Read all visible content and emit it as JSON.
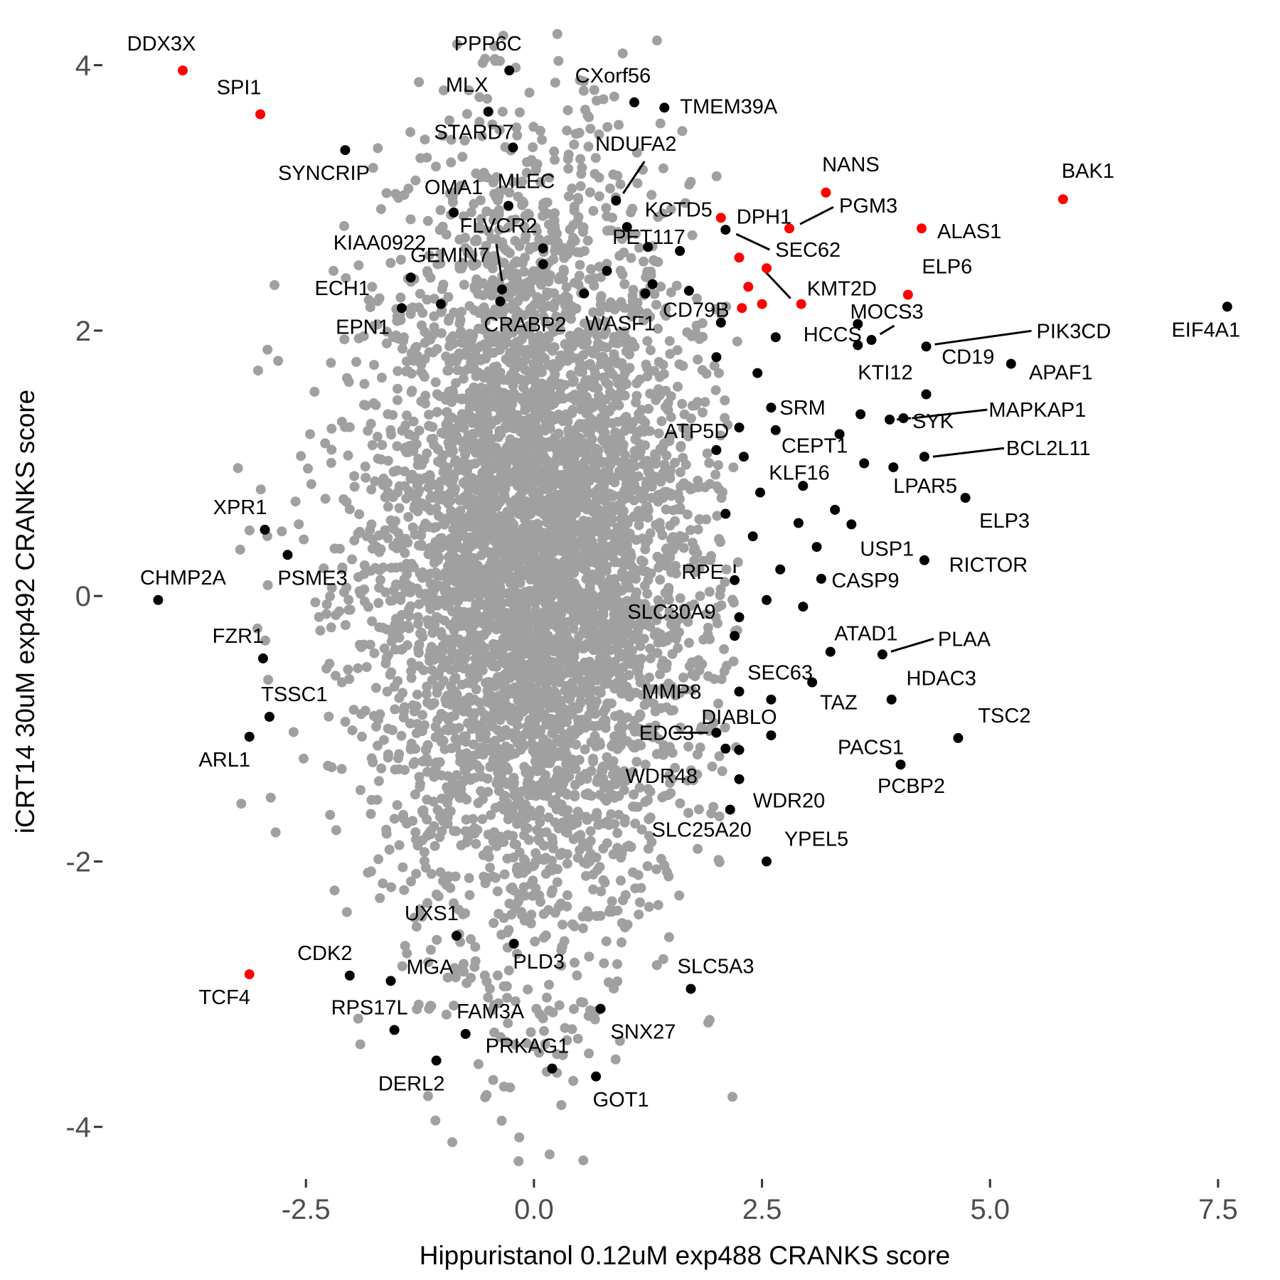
{
  "chart_data": {
    "type": "scatter",
    "title": "",
    "xlabel": "Hippuristanol 0.12uM exp488 CRANKS score",
    "ylabel": "iCRT14 30uM exp492 CRANKS score",
    "xlim": [
      -4.7,
      7.75
    ],
    "ylim": [
      -4.35,
      4.25
    ],
    "x_ticks": [
      -2.5,
      0.0,
      2.5,
      5.0,
      7.5
    ],
    "x_tick_labels": [
      "-2.5",
      "0.0",
      "2.5",
      "5.0",
      "7.5"
    ],
    "y_ticks": [
      4,
      2,
      0,
      -2,
      -4
    ],
    "y_tick_labels": [
      "4",
      "2",
      "0",
      "-2",
      "-4"
    ],
    "grid": false,
    "legend": "none",
    "colors": {
      "background": "#ffffff",
      "all": "#a0a0a0",
      "hit": "#000000",
      "highlight": "#ff0000"
    },
    "background_cloud": {
      "color": "#a0a0a0",
      "note_free": true,
      "core": {
        "cx": 0.0,
        "cy": 0.3,
        "sx": 0.85,
        "sy": 1.55
      },
      "halo": {
        "cx": 0.0,
        "cy": 0.2,
        "sx": 1.35,
        "sy": 1.0
      }
    },
    "labeled_points": [
      {
        "gene": "DDX3X",
        "x": -3.85,
        "y": 3.96,
        "color": "red"
      },
      {
        "gene": "SPI1",
        "x": -3.0,
        "y": 3.63,
        "color": "red"
      },
      {
        "gene": "PPP6C",
        "x": -0.27,
        "y": 3.96,
        "color": "black"
      },
      {
        "gene": "MLX",
        "x": -0.5,
        "y": 3.65,
        "color": "black"
      },
      {
        "gene": "CXorf56",
        "x": 1.1,
        "y": 3.72,
        "color": "black"
      },
      {
        "gene": "TMEM39A",
        "x": 1.43,
        "y": 3.68,
        "color": "black"
      },
      {
        "gene": "STARD7",
        "x": -0.23,
        "y": 3.38,
        "color": "black"
      },
      {
        "gene": "SYNCRIP",
        "x": -2.07,
        "y": 3.36,
        "color": "black"
      },
      {
        "gene": "NDUFA2",
        "x": 0.9,
        "y": 2.98,
        "color": "black"
      },
      {
        "gene": "KCTD5",
        "x": 1.02,
        "y": 2.78,
        "color": "black"
      },
      {
        "gene": "OMA1",
        "x": -0.88,
        "y": 2.89,
        "color": "black"
      },
      {
        "gene": "MLEC",
        "x": -0.28,
        "y": 2.94,
        "color": "black"
      },
      {
        "gene": "NANS",
        "x": 3.2,
        "y": 3.04,
        "color": "red"
      },
      {
        "gene": "BAK1",
        "x": 5.8,
        "y": 2.99,
        "color": "red"
      },
      {
        "gene": "DPH1",
        "x": 2.05,
        "y": 2.85,
        "color": "red"
      },
      {
        "gene": "PGM3",
        "x": 2.8,
        "y": 2.77,
        "color": "red"
      },
      {
        "gene": "ALAS1",
        "x": 4.25,
        "y": 2.77,
        "color": "red"
      },
      {
        "gene": "KIAA0922",
        "x": 0.1,
        "y": 2.62,
        "color": "black"
      },
      {
        "gene": "FLVCR2",
        "x": -0.35,
        "y": 2.31,
        "color": "black"
      },
      {
        "gene": "PET117",
        "x": 1.6,
        "y": 2.6,
        "color": "black"
      },
      {
        "gene": "SEC62",
        "x": 2.1,
        "y": 2.76,
        "color": "black"
      },
      {
        "gene": "GEMIN7",
        "x": -1.35,
        "y": 2.4,
        "color": "black"
      },
      {
        "gene": "KMT2D",
        "x": 2.93,
        "y": 2.2,
        "color": "red"
      },
      {
        "gene": "ELP6",
        "x": 4.1,
        "y": 2.27,
        "color": "red"
      },
      {
        "gene": "ECH1",
        "x": -1.45,
        "y": 2.17,
        "color": "black"
      },
      {
        "gene": "EPN1",
        "x": -1.02,
        "y": 2.2,
        "color": "black"
      },
      {
        "gene": "CRABP2",
        "x": -0.37,
        "y": 2.22,
        "color": "black"
      },
      {
        "gene": "WASF1",
        "x": 1.22,
        "y": 2.28,
        "color": "black"
      },
      {
        "gene": "EIF4A1",
        "x": 7.6,
        "y": 2.18,
        "color": "black"
      },
      {
        "gene": "MOCS3",
        "x": 3.7,
        "y": 1.93,
        "color": "black"
      },
      {
        "gene": "PIK3CD",
        "x": 4.3,
        "y": 1.88,
        "color": "black"
      },
      {
        "gene": "CD79B",
        "x": 2.05,
        "y": 2.06,
        "color": "black"
      },
      {
        "gene": "HCCS",
        "x": 2.65,
        "y": 1.95,
        "color": "black"
      },
      {
        "gene": "KTI12",
        "x": 3.55,
        "y": 1.89,
        "color": "black"
      },
      {
        "gene": "CD19",
        "x": 3.55,
        "y": 2.05,
        "color": "black"
      },
      {
        "gene": "APAF1",
        "x": 5.23,
        "y": 1.75,
        "color": "black"
      },
      {
        "gene": "ATP5D",
        "x": 2.25,
        "y": 1.27,
        "color": "black"
      },
      {
        "gene": "SRM",
        "x": 2.6,
        "y": 1.42,
        "color": "black"
      },
      {
        "gene": "SYK",
        "x": 3.9,
        "y": 1.33,
        "color": "black"
      },
      {
        "gene": "MAPKAP1",
        "x": 4.05,
        "y": 1.34,
        "color": "black"
      },
      {
        "gene": "CEPT1",
        "x": 3.35,
        "y": 1.22,
        "color": "black"
      },
      {
        "gene": "BCL2L11",
        "x": 4.28,
        "y": 1.05,
        "color": "black"
      },
      {
        "gene": "KLF16",
        "x": 2.48,
        "y": 0.78,
        "color": "black"
      },
      {
        "gene": "LPAR5",
        "x": 3.94,
        "y": 0.97,
        "color": "black"
      },
      {
        "gene": "USP1",
        "x": 3.48,
        "y": 0.54,
        "color": "black"
      },
      {
        "gene": "ELP3",
        "x": 4.73,
        "y": 0.74,
        "color": "black"
      },
      {
        "gene": "RICTOR",
        "x": 4.28,
        "y": 0.27,
        "color": "black"
      },
      {
        "gene": "RPE",
        "x": 2.2,
        "y": 0.12,
        "color": "black"
      },
      {
        "gene": "CASP9",
        "x": 3.15,
        "y": 0.13,
        "color": "black"
      },
      {
        "gene": "SLC30A9",
        "x": 2.25,
        "y": -0.16,
        "color": "black"
      },
      {
        "gene": "ATAD1",
        "x": 3.25,
        "y": -0.42,
        "color": "black"
      },
      {
        "gene": "PLAA",
        "x": 3.82,
        "y": -0.44,
        "color": "black"
      },
      {
        "gene": "SEC63",
        "x": 3.05,
        "y": -0.65,
        "color": "black"
      },
      {
        "gene": "MMP8",
        "x": 2.25,
        "y": -0.72,
        "color": "black"
      },
      {
        "gene": "HDAC3",
        "x": 3.92,
        "y": -0.78,
        "color": "black"
      },
      {
        "gene": "TAZ",
        "x": 2.6,
        "y": -0.78,
        "color": "black"
      },
      {
        "gene": "DIABLO",
        "x": 2.6,
        "y": -1.05,
        "color": "black"
      },
      {
        "gene": "EDC3",
        "x": 2.0,
        "y": -1.03,
        "color": "black"
      },
      {
        "gene": "TSC2",
        "x": 4.65,
        "y": -1.07,
        "color": "black"
      },
      {
        "gene": "PACS1",
        "x": 2.25,
        "y": -1.16,
        "color": "black"
      },
      {
        "gene": "WDR48",
        "x": 2.1,
        "y": -1.15,
        "color": "black"
      },
      {
        "gene": "WDR20",
        "x": 2.25,
        "y": -1.38,
        "color": "black"
      },
      {
        "gene": "PCBP2",
        "x": 4.02,
        "y": -1.27,
        "color": "black"
      },
      {
        "gene": "SLC25A20",
        "x": 2.15,
        "y": -1.61,
        "color": "black"
      },
      {
        "gene": "YPEL5",
        "x": 2.55,
        "y": -2.0,
        "color": "black"
      },
      {
        "gene": "XPR1",
        "x": -2.95,
        "y": 0.5,
        "color": "black"
      },
      {
        "gene": "PSME3",
        "x": -2.7,
        "y": 0.31,
        "color": "black"
      },
      {
        "gene": "CHMP2A",
        "x": -4.12,
        "y": -0.03,
        "color": "black"
      },
      {
        "gene": "FZR1",
        "x": -2.97,
        "y": -0.47,
        "color": "black"
      },
      {
        "gene": "TSSC1",
        "x": -2.9,
        "y": -0.91,
        "color": "black"
      },
      {
        "gene": "ARL1",
        "x": -3.12,
        "y": -1.06,
        "color": "black"
      },
      {
        "gene": "UXS1",
        "x": -0.85,
        "y": -2.56,
        "color": "black"
      },
      {
        "gene": "PLD3",
        "x": -0.22,
        "y": -2.62,
        "color": "black"
      },
      {
        "gene": "CDK2",
        "x": -2.02,
        "y": -2.86,
        "color": "black"
      },
      {
        "gene": "MGA",
        "x": -1.57,
        "y": -2.9,
        "color": "black"
      },
      {
        "gene": "TCF4",
        "x": -3.12,
        "y": -2.85,
        "color": "red"
      },
      {
        "gene": "SLC5A3",
        "x": 1.72,
        "y": -2.96,
        "color": "black"
      },
      {
        "gene": "SNX27",
        "x": 0.73,
        "y": -3.11,
        "color": "black"
      },
      {
        "gene": "RPS17L",
        "x": -1.53,
        "y": -3.27,
        "color": "black"
      },
      {
        "gene": "FAM3A",
        "x": -0.75,
        "y": -3.3,
        "color": "black"
      },
      {
        "gene": "DERL2",
        "x": -1.07,
        "y": -3.5,
        "color": "black"
      },
      {
        "gene": "PRKAG1",
        "x": 0.2,
        "y": -3.56,
        "color": "black"
      },
      {
        "gene": "GOT1",
        "x": 0.68,
        "y": -3.62,
        "color": "black"
      }
    ],
    "extra_points": [
      {
        "x": 2.25,
        "y": 2.55,
        "color": "red"
      },
      {
        "x": 2.35,
        "y": 2.33,
        "color": "red"
      },
      {
        "x": 2.55,
        "y": 2.47,
        "color": "red"
      },
      {
        "x": 2.28,
        "y": 2.17,
        "color": "red"
      },
      {
        "x": 2.5,
        "y": 2.2,
        "color": "red"
      },
      {
        "x": 3.58,
        "y": 1.37,
        "color": "black"
      },
      {
        "x": 4.3,
        "y": 1.52,
        "color": "black"
      },
      {
        "x": 3.62,
        "y": 1.0,
        "color": "black"
      },
      {
        "x": 3.3,
        "y": 0.65,
        "color": "black"
      },
      {
        "x": 3.1,
        "y": 0.37,
        "color": "black"
      },
      {
        "x": 2.95,
        "y": 0.83,
        "color": "black"
      },
      {
        "x": 2.9,
        "y": 0.55,
        "color": "black"
      },
      {
        "x": 2.1,
        "y": 0.62,
        "color": "black"
      },
      {
        "x": 2.4,
        "y": 0.45,
        "color": "black"
      },
      {
        "x": 2.7,
        "y": 0.2,
        "color": "black"
      },
      {
        "x": 2.55,
        "y": -0.03,
        "color": "black"
      },
      {
        "x": 2.2,
        "y": -0.3,
        "color": "black"
      },
      {
        "x": 2.95,
        "y": -0.08,
        "color": "black"
      },
      {
        "x": 2.0,
        "y": 1.8,
        "color": "black"
      },
      {
        "x": 2.45,
        "y": 1.68,
        "color": "black"
      },
      {
        "x": 2.0,
        "y": 1.1,
        "color": "black"
      },
      {
        "x": 2.3,
        "y": 1.05,
        "color": "black"
      },
      {
        "x": 2.65,
        "y": 1.25,
        "color": "black"
      },
      {
        "x": 1.25,
        "y": 2.63,
        "color": "black"
      },
      {
        "x": 0.8,
        "y": 2.45,
        "color": "black"
      },
      {
        "x": 1.3,
        "y": 2.35,
        "color": "black"
      },
      {
        "x": 0.1,
        "y": 2.5,
        "color": "black"
      },
      {
        "x": 0.55,
        "y": 2.28,
        "color": "black"
      },
      {
        "x": 1.7,
        "y": 2.3,
        "color": "black"
      }
    ]
  }
}
